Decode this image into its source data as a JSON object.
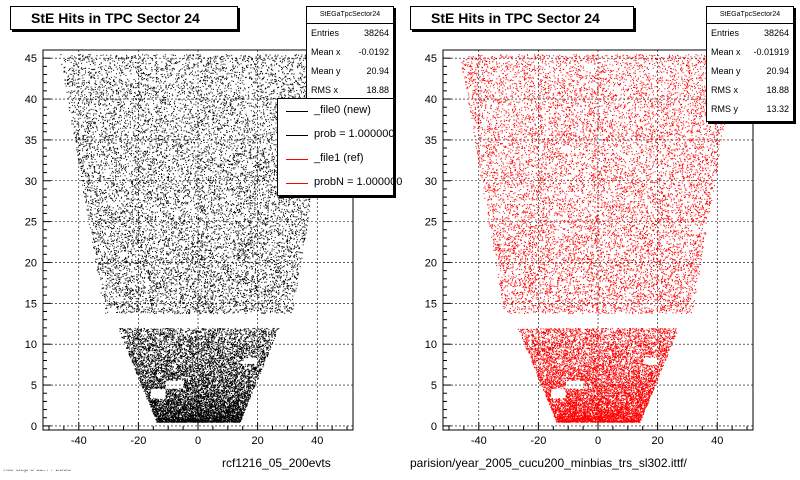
{
  "pads": [
    {
      "title": "StE Hits in TPC Sector 24",
      "stats": {
        "name": "StEGaTpcSector24",
        "rows": [
          {
            "label": "Entries",
            "value": "38264"
          },
          {
            "label": "Mean x",
            "value": "-0.0192"
          },
          {
            "label": "Mean y",
            "value": "20.94"
          },
          {
            "label": "RMS x",
            "value": "18.88"
          }
        ]
      },
      "legend": [
        {
          "label": "_file0 (new)",
          "color": "#000000"
        },
        {
          "label": "prob = 1.000000",
          "color": "#000000"
        },
        {
          "label": "_file1 (ref)",
          "color": "#ff0000"
        },
        {
          "label": "probN = 1.000000",
          "color": "#ff0000"
        }
      ],
      "caption": "rcf1216_05_200evts",
      "color": "#000000"
    },
    {
      "title": "StE Hits in TPC Sector 24",
      "stats": {
        "name": "StEGaTpcSector24",
        "rows": [
          {
            "label": "Entries",
            "value": "38264"
          },
          {
            "label": "Mean x",
            "value": "-0.01919"
          },
          {
            "label": "Mean y",
            "value": "20.94"
          },
          {
            "label": "RMS x",
            "value": "18.88"
          },
          {
            "label": "RMS y",
            "value": "13.32"
          }
        ]
      },
      "caption": "parision/year_2005_cucu200_minbias_trs_sl302.ittf/",
      "color": "#ff0000"
    }
  ],
  "footer_fragment": "Tue Sep 6 12:?? 2005",
  "chart_data": [
    {
      "type": "scatter",
      "title": "StE Hits in TPC Sector 24",
      "series_color": "#000000",
      "xlim": [
        -52,
        52
      ],
      "ylim": [
        -0.5,
        46
      ],
      "xticks": [
        -40,
        -20,
        0,
        20,
        40
      ],
      "yticks": [
        0,
        5,
        10,
        15,
        20,
        25,
        30,
        35,
        40,
        45
      ],
      "region_outline": {
        "outer_rows_y": [
          13.8,
          45.5
        ],
        "outer_halfwidth_at_y": [
          [
            13.8,
            31.5
          ],
          [
            45.5,
            46.5
          ]
        ],
        "inner_rows_y": [
          0.5,
          12
        ],
        "inner_halfwidth_at_y": [
          [
            0.5,
            14
          ],
          [
            12,
            27
          ]
        ]
      },
      "entries": 38264,
      "mean_x": -0.0192,
      "mean_y": 20.94,
      "rms_x": 18.88
    },
    {
      "type": "scatter",
      "title": "StE Hits in TPC Sector 24",
      "series_color": "#ff0000",
      "xlim": [
        -52,
        52
      ],
      "ylim": [
        -0.5,
        46
      ],
      "xticks": [
        -40,
        -20,
        0,
        20,
        40
      ],
      "yticks": [
        0,
        5,
        10,
        15,
        20,
        25,
        30,
        35,
        40,
        45
      ],
      "region_outline": {
        "outer_rows_y": [
          13.8,
          45.5
        ],
        "outer_halfwidth_at_y": [
          [
            13.8,
            31.5
          ],
          [
            45.5,
            46.5
          ]
        ],
        "inner_rows_y": [
          0.5,
          12
        ],
        "inner_halfwidth_at_y": [
          [
            0.5,
            14
          ],
          [
            12,
            27
          ]
        ]
      },
      "entries": 38264,
      "mean_x": -0.01919,
      "mean_y": 20.94,
      "rms_x": 18.88,
      "rms_y": 13.32
    }
  ]
}
